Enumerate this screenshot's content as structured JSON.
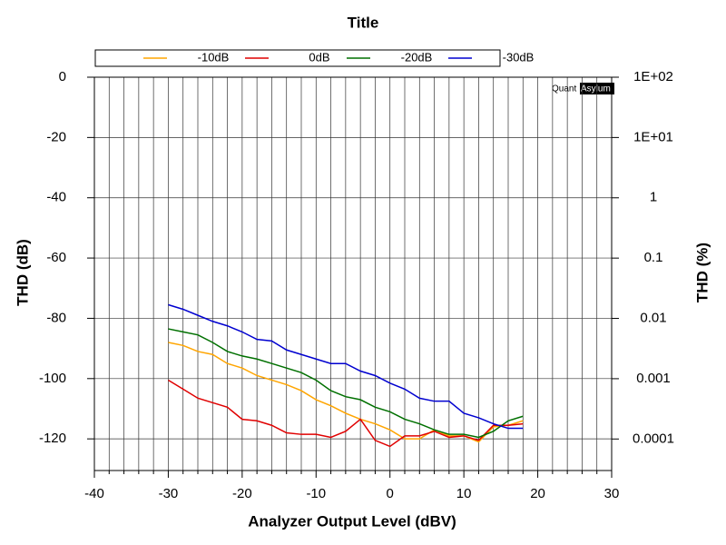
{
  "chart_data": {
    "type": "line",
    "title": "Title",
    "xlabel": "Analyzer Output Level (dBV)",
    "ylabel": "THD (dB)",
    "y2label": "THD (%)",
    "watermark": [
      "Quant",
      "Asylum"
    ],
    "x": [
      -30,
      -28,
      -26,
      -24,
      -22,
      -20,
      -18,
      -16,
      -14,
      -12,
      -10,
      -8,
      -6,
      -4,
      -2,
      0,
      2,
      4,
      6,
      8,
      10,
      12,
      14,
      16,
      18
    ],
    "series": [
      {
        "name": "-10dB",
        "color": "#ffa500",
        "values": [
          -88,
          -89,
          -91,
          -92,
          -95,
          -96.5,
          -99,
          -100.5,
          -102,
          -104,
          -107,
          -109,
          -111.5,
          -113.5,
          -115,
          -117,
          -120,
          -120,
          -117,
          -119,
          -119,
          -121,
          -116,
          -115.5,
          -114
        ]
      },
      {
        "name": "0dB",
        "color": "#e00000",
        "values": [
          -100.5,
          -103.5,
          -106.5,
          -108,
          -109.5,
          -113.5,
          -114,
          -115.5,
          -118,
          -118.5,
          -118.5,
          -119.5,
          -117.5,
          -113.5,
          -120.5,
          -122.5,
          -119,
          -119,
          -117.5,
          -119.5,
          -119,
          -120.5,
          -115.5,
          -115.5,
          -115
        ]
      },
      {
        "name": "-20dB",
        "color": "#007000",
        "values": [
          -83.5,
          -84.5,
          -85.5,
          -88,
          -91,
          -92.5,
          -93.5,
          -95,
          -96.5,
          -98,
          -100.5,
          -104,
          -106,
          -107,
          -109.5,
          -111,
          -113.5,
          -115,
          -117,
          -118.5,
          -118.5,
          -119.5,
          -117.5,
          -114,
          -112.5
        ]
      },
      {
        "name": "-30dB",
        "color": "#0000d0",
        "values": [
          -75.5,
          -77,
          -79,
          -81,
          -82.5,
          -84.5,
          -87,
          -87.5,
          -90.5,
          -92,
          -93.5,
          -95,
          -95,
          -97.5,
          -99,
          -101.5,
          -103.5,
          -106.5,
          -107.5,
          -107.5,
          -111.5,
          -113,
          -115,
          -116.5,
          -116.5
        ]
      }
    ],
    "xlim": [
      -40,
      30
    ],
    "xticks": [
      -40,
      -30,
      -20,
      -10,
      0,
      10,
      20,
      30
    ],
    "x_minor_ticks": [
      -38,
      -36,
      -34,
      -32,
      -28,
      -26,
      -24,
      -22,
      -18,
      -16,
      -14,
      -12,
      -8,
      -6,
      -4,
      -2,
      2,
      4,
      6,
      8,
      12,
      14,
      16,
      18,
      22,
      24,
      26,
      28
    ],
    "ylim": [
      -130.5,
      0
    ],
    "yticks": [
      0,
      -20,
      -40,
      -60,
      -80,
      -100,
      -120
    ],
    "y2lim": [
      3e-05,
      100
    ],
    "y2log": true,
    "y2ticks": [
      {
        "value": 100,
        "label": "1E+02"
      },
      {
        "value": 10,
        "label": "1E+01"
      },
      1,
      0.1,
      0.01,
      0.001,
      0.0001
    ],
    "grid": true
  }
}
